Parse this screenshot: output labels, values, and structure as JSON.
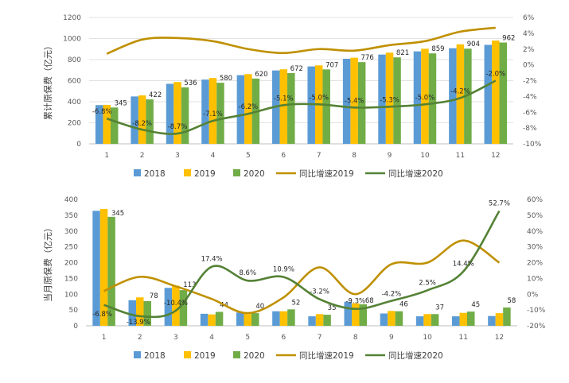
{
  "colors": {
    "s2018": "#5B9BD5",
    "s2019": "#FFC000",
    "s2020": "#70AD47",
    "g2019": "#BF9000",
    "g2020": "#548235"
  },
  "legend": [
    "2018",
    "2019",
    "2020",
    "同比增速2019",
    "同比增速2020"
  ],
  "chart_data": [
    {
      "type": "bar",
      "ylabel": "累计原保费（亿元）",
      "categories": [
        "1",
        "2",
        "3",
        "4",
        "5",
        "6",
        "7",
        "8",
        "9",
        "10",
        "11",
        "12"
      ],
      "ylim": [
        0,
        1200
      ],
      "y_ticks": [
        "0",
        "200",
        "400",
        "600",
        "800",
        "1000",
        "1200"
      ],
      "y2lim": [
        -10,
        6
      ],
      "y2_ticks": [
        "-10%",
        "-8%",
        "-6%",
        "-4%",
        "-2%",
        "0%",
        "2%",
        "4%",
        "6%"
      ],
      "series": [
        {
          "name": "2018",
          "values": [
            368,
            450,
            570,
            610,
            652,
            697,
            735,
            808,
            848,
            878,
            908,
            940
          ]
        },
        {
          "name": "2019",
          "values": [
            370,
            460,
            587,
            625,
            662,
            708,
            745,
            818,
            866,
            903,
            945,
            981
          ]
        },
        {
          "name": "2020",
          "values": [
            345,
            422,
            536,
            580,
            620,
            672,
            707,
            776,
            821,
            859,
            904,
            962
          ]
        }
      ],
      "data_labels_2020": [
        "345",
        "422",
        "536",
        "580",
        "620",
        "672",
        "707",
        "776",
        "821",
        "859",
        "904",
        "962"
      ],
      "growth": [
        {
          "name": "同比增速2019",
          "values": [
            1.4,
            3.2,
            3.4,
            3.0,
            2.0,
            1.5,
            2.0,
            1.8,
            2.5,
            3.0,
            4.2,
            4.7
          ]
        },
        {
          "name": "同比增速2020",
          "values": [
            -6.8,
            -8.2,
            -8.7,
            -7.1,
            -6.2,
            -5.1,
            -5.0,
            -5.4,
            -5.3,
            -5.0,
            -4.2,
            -2.0
          ]
        }
      ],
      "growth_labels_2020": [
        "-6.8%",
        "-8.2%",
        "-8.7%",
        "-7.1%",
        "-6.2%",
        "-5.1%",
        "-5.0%",
        "-5.4%",
        "-5.3%",
        "-5.0%",
        "-4.2%",
        "-2.0%"
      ]
    },
    {
      "type": "bar",
      "ylabel": "当月原保费（亿元）",
      "categories": [
        "1",
        "2",
        "3",
        "4",
        "5",
        "6",
        "7",
        "8",
        "9",
        "10",
        "11",
        "12"
      ],
      "ylim": [
        0,
        400
      ],
      "y_ticks": [
        "0",
        "50",
        "100",
        "150",
        "200",
        "250",
        "300",
        "350",
        "400"
      ],
      "y2lim": [
        -20,
        60
      ],
      "y2_ticks": [
        "-20%",
        "-10%",
        "0%",
        "10%",
        "20%",
        "30%",
        "40%",
        "50%",
        "60%"
      ],
      "series": [
        {
          "name": "2018",
          "values": [
            364,
            81,
            120,
            38,
            42,
            46,
            30,
            76,
            39,
            30,
            30,
            31
          ]
        },
        {
          "name": "2019",
          "values": [
            370,
            90,
            127,
            36,
            37,
            46,
            37,
            71,
            47,
            37,
            41,
            40
          ]
        },
        {
          "name": "2020",
          "values": [
            345,
            78,
            113,
            44,
            40,
            52,
            35,
            68,
            46,
            37,
            45,
            58
          ]
        }
      ],
      "data_labels_2020": [
        "345",
        "78",
        "113",
        "44",
        "40",
        "52",
        "35",
        "68",
        "46",
        "37",
        "45",
        "58"
      ],
      "growth": [
        {
          "name": "同比增速2019",
          "values": [
            2,
            11,
            5,
            -3,
            -12,
            -2,
            17,
            0,
            19,
            20,
            34,
            20
          ]
        },
        {
          "name": "同比增速2020",
          "values": [
            -6.8,
            -13.9,
            -10.4,
            17.4,
            8.6,
            10.9,
            -3.2,
            -9.3,
            -4.2,
            2.5,
            14.4,
            52.7
          ]
        }
      ],
      "growth_labels_2020": [
        "-6.8%",
        "-13.9%",
        "-10.4%",
        "17.4%",
        "8.6%",
        "10.9%",
        "-3.2%",
        "-9.3%",
        "-4.2%",
        "2.5%",
        "14.4%",
        "52.7%"
      ]
    }
  ]
}
